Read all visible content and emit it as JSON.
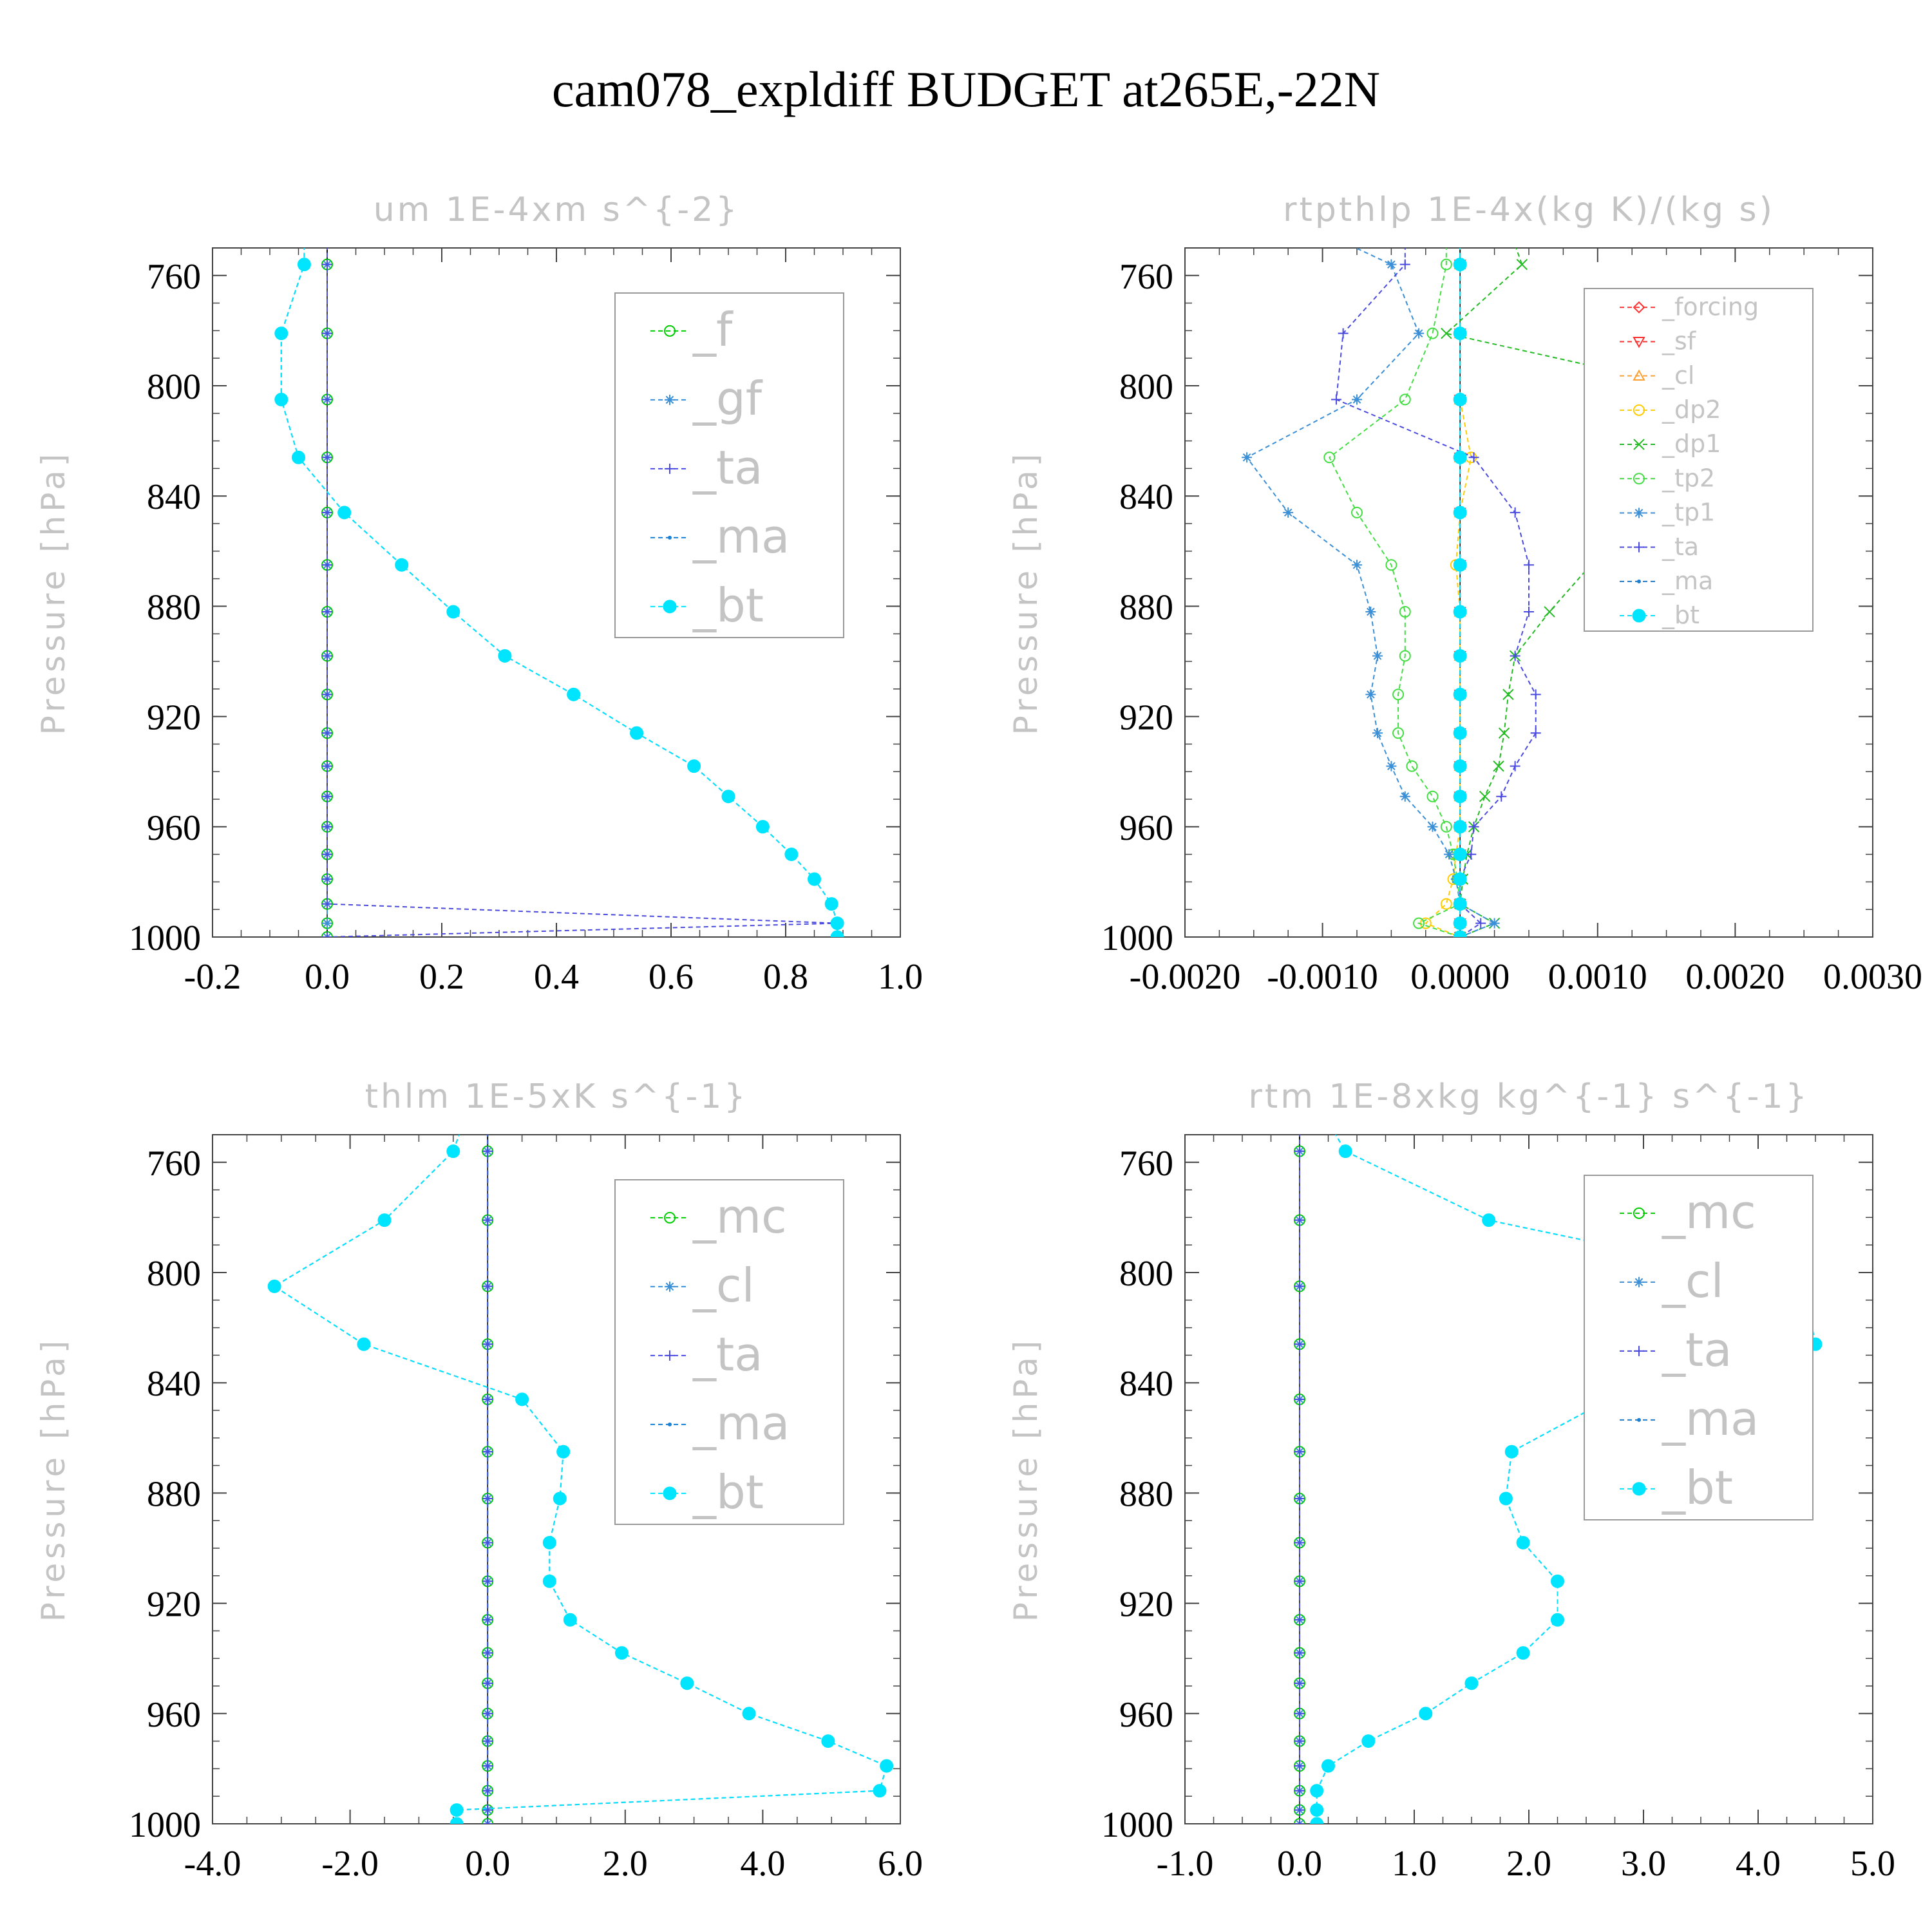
{
  "title": "cam078_expldiff  BUDGET at265E,-22N",
  "chart_data": [
    {
      "type": "line",
      "title": "um   1E-4xm s^{-2}",
      "ylabel": "Pressure [hPa]",
      "xlim": [
        -0.2,
        1.0
      ],
      "ylim": [
        1000,
        750
      ],
      "xticks": [
        "-0.2",
        "0.0",
        "0.2",
        "0.4",
        "0.6",
        "0.8",
        "1.0"
      ],
      "yticks": [
        "760",
        "800",
        "840",
        "880",
        "920",
        "960",
        "1000"
      ],
      "levels": [
        749,
        756,
        781,
        805,
        826,
        846,
        865,
        882,
        898,
        912,
        926,
        938,
        949,
        960,
        970,
        979,
        988,
        995,
        1000
      ],
      "series": [
        {
          "name": "_f",
          "color": "#00cc00",
          "marker": "circle",
          "values": [
            0,
            0,
            0,
            0,
            0,
            0,
            0,
            0,
            0,
            0,
            0,
            0,
            0,
            0,
            0,
            0,
            0,
            0,
            0
          ]
        },
        {
          "name": "_gf",
          "color": "#3a8fd6",
          "marker": "star",
          "values": [
            0,
            0,
            0,
            0,
            0,
            0,
            0,
            0,
            0,
            0,
            0,
            0,
            0,
            0,
            0,
            0,
            0,
            0,
            0
          ]
        },
        {
          "name": "_ta",
          "color": "#4a4ae0",
          "marker": "plus",
          "values": [
            0,
            0,
            0,
            0,
            0,
            0,
            0,
            0,
            0,
            0,
            0,
            0,
            0,
            0,
            0,
            0,
            0,
            0.89,
            0
          ]
        },
        {
          "name": "_ma",
          "color": "#1c7fd0",
          "marker": "dot",
          "values": [
            -0.04,
            -0.04,
            -0.08,
            -0.08,
            -0.05,
            0.03,
            0.13,
            0.22,
            0.31,
            0.43,
            0.54,
            0.64,
            0.7,
            0.76,
            0.81,
            0.85,
            0.88,
            0.89,
            0.89
          ]
        },
        {
          "name": "_bt",
          "color": "#00e5ff",
          "marker": "filled",
          "values": [
            -0.04,
            -0.04,
            -0.08,
            -0.08,
            -0.05,
            0.03,
            0.13,
            0.22,
            0.31,
            0.43,
            0.54,
            0.64,
            0.7,
            0.76,
            0.81,
            0.85,
            0.88,
            0.89,
            0.89
          ]
        }
      ]
    },
    {
      "type": "line",
      "title": "rtpthlp   1E-4x(kg K)/(kg s)",
      "ylabel": "Pressure [hPa]",
      "xlim": [
        -0.002,
        0.003
      ],
      "ylim": [
        1000,
        750
      ],
      "xticks": [
        "-0.0020",
        "-0.0010",
        "0.0000",
        "0.0010",
        "0.0020",
        "0.0030"
      ],
      "yticks": [
        "760",
        "800",
        "840",
        "880",
        "920",
        "960",
        "1000"
      ],
      "levels": [
        749,
        756,
        781,
        805,
        826,
        846,
        865,
        882,
        898,
        912,
        926,
        938,
        949,
        960,
        970,
        979,
        988,
        995,
        1000
      ],
      "series": [
        {
          "name": "_forcing",
          "color": "#ff3030",
          "marker": "diamond",
          "values": [
            0,
            0,
            0,
            0,
            0,
            0,
            0,
            0,
            0,
            0,
            0,
            0,
            0,
            0,
            0,
            0,
            0,
            0,
            0
          ]
        },
        {
          "name": "_sf",
          "color": "#ff3030",
          "marker": "tri-down",
          "values": [
            0,
            0,
            0,
            0,
            0,
            0,
            0,
            0,
            0,
            0,
            0,
            0,
            0,
            0,
            0,
            0,
            0,
            0,
            0
          ]
        },
        {
          "name": "_cl",
          "color": "#ffa030",
          "marker": "triangle",
          "values": [
            0,
            0,
            0,
            0,
            0,
            0,
            0,
            0,
            0,
            0,
            0,
            0,
            0,
            0,
            0,
            0,
            0,
            0,
            0
          ]
        },
        {
          "name": "_dp2",
          "color": "#ffcc00",
          "marker": "circle",
          "values": [
            0,
            0,
            0,
            0,
            8e-05,
            0,
            -3e-05,
            0,
            0,
            0,
            0,
            0,
            0,
            0,
            -3e-05,
            -5e-05,
            -0.0001,
            -0.00025,
            0
          ]
        },
        {
          "name": "_dp1",
          "color": "#22bb22",
          "marker": "x",
          "values": [
            0.0004,
            0.00045,
            -0.0001,
            0.00205,
            0.00222,
            0.0014,
            0.00095,
            0.00065,
            0.0004,
            0.00035,
            0.00032,
            0.00028,
            0.00018,
            0.0001,
            5e-05,
            2e-05,
            0,
            0.00025,
            0
          ]
        },
        {
          "name": "_tp2",
          "color": "#44dd44",
          "marker": "circle",
          "values": [
            -0.0001,
            -0.0001,
            -0.0002,
            -0.0004,
            -0.00095,
            -0.00075,
            -0.0005,
            -0.0004,
            -0.0004,
            -0.00045,
            -0.00045,
            -0.00035,
            -0.0002,
            -0.0001,
            -5e-05,
            -2e-05,
            0,
            -0.0003,
            0
          ]
        },
        {
          "name": "_tp1",
          "color": "#3a8fd6",
          "marker": "star",
          "values": [
            -0.0008,
            -0.0005,
            -0.0003,
            -0.00075,
            -0.00155,
            -0.00125,
            -0.00075,
            -0.00065,
            -0.0006,
            -0.00065,
            -0.0006,
            -0.0005,
            -0.0004,
            -0.0002,
            -8e-05,
            -3e-05,
            0,
            0.00025,
            0
          ]
        },
        {
          "name": "_ta",
          "color": "#4a4ae0",
          "marker": "plus",
          "values": [
            -0.0004,
            -0.0004,
            -0.00085,
            -0.0009,
            0.0001,
            0.0004,
            0.0005,
            0.0005,
            0.0004,
            0.00055,
            0.00055,
            0.0004,
            0.0003,
            0.0001,
            8e-05,
            0,
            0,
            0.00015,
            0
          ]
        },
        {
          "name": "_ma",
          "color": "#1c7fd0",
          "marker": "dot",
          "values": [
            0,
            0,
            0,
            0,
            0,
            0,
            0,
            0,
            0,
            0,
            0,
            0,
            0,
            0,
            0,
            0,
            0,
            0,
            0
          ]
        },
        {
          "name": "_bt",
          "color": "#00e5ff",
          "marker": "filled",
          "values": [
            0,
            0,
            0,
            0,
            0,
            0,
            0,
            0,
            0,
            0,
            0,
            0,
            0,
            0,
            0,
            0,
            0,
            0,
            0
          ]
        }
      ]
    },
    {
      "type": "line",
      "title": "thlm   1E-5xK s^{-1}",
      "ylabel": "Pressure [hPa]",
      "xlim": [
        -4.0,
        6.0
      ],
      "ylim": [
        1000,
        750
      ],
      "xticks": [
        "-4.0",
        "-2.0",
        "0.0",
        "2.0",
        "4.0",
        "6.0"
      ],
      "yticks": [
        "760",
        "800",
        "840",
        "880",
        "920",
        "960",
        "1000"
      ],
      "levels": [
        749,
        756,
        781,
        805,
        826,
        846,
        865,
        882,
        898,
        912,
        926,
        938,
        949,
        960,
        970,
        979,
        988,
        995,
        1000
      ],
      "series": [
        {
          "name": "_mc",
          "color": "#00cc00",
          "marker": "circle",
          "values": [
            0,
            0,
            0,
            0,
            0,
            0,
            0,
            0,
            0,
            0,
            0,
            0,
            0,
            0,
            0,
            0,
            0,
            0,
            0
          ]
        },
        {
          "name": "_cl",
          "color": "#3a8fd6",
          "marker": "star",
          "values": [
            0,
            0,
            0,
            0,
            0,
            0,
            0,
            0,
            0,
            0,
            0,
            0,
            0,
            0,
            0,
            0,
            0,
            0,
            0
          ]
        },
        {
          "name": "_ta",
          "color": "#4a4ae0",
          "marker": "plus",
          "values": [
            0,
            0,
            0,
            0,
            0,
            0,
            0,
            0,
            0,
            0,
            0,
            0,
            0,
            0,
            0,
            0,
            0,
            0,
            0
          ]
        },
        {
          "name": "_ma",
          "color": "#1c7fd0",
          "marker": "dot",
          "values": [
            -0.4,
            -0.5,
            -1.5,
            -3.1,
            -1.8,
            0.5,
            1.1,
            1.05,
            0.9,
            0.9,
            1.2,
            1.95,
            2.9,
            3.8,
            4.95,
            5.8,
            5.7,
            -0.45,
            -0.45
          ]
        },
        {
          "name": "_bt",
          "color": "#00e5ff",
          "marker": "filled",
          "values": [
            -0.4,
            -0.5,
            -1.5,
            -3.1,
            -1.8,
            0.5,
            1.1,
            1.05,
            0.9,
            0.9,
            1.2,
            1.95,
            2.9,
            3.8,
            4.95,
            5.8,
            5.7,
            -0.45,
            -0.45
          ]
        }
      ]
    },
    {
      "type": "line",
      "title": "rtm   1E-8xkg kg^{-1} s^{-1}",
      "ylabel": "Pressure [hPa]",
      "xlim": [
        -1.0,
        5.0
      ],
      "ylim": [
        1000,
        750
      ],
      "xticks": [
        "-1.0",
        "0.0",
        "1.0",
        "2.0",
        "3.0",
        "4.0",
        "5.0"
      ],
      "yticks": [
        "760",
        "800",
        "840",
        "880",
        "920",
        "960",
        "1000"
      ],
      "levels": [
        749,
        756,
        781,
        805,
        826,
        846,
        865,
        882,
        898,
        912,
        926,
        938,
        949,
        960,
        970,
        979,
        988,
        995,
        1000
      ],
      "series": [
        {
          "name": "_mc",
          "color": "#00cc00",
          "marker": "circle",
          "values": [
            0,
            0,
            0,
            0,
            0,
            0,
            0,
            0,
            0,
            0,
            0,
            0,
            0,
            0,
            0,
            0,
            0,
            0,
            0
          ]
        },
        {
          "name": "_cl",
          "color": "#3a8fd6",
          "marker": "star",
          "values": [
            0,
            0,
            0,
            0,
            0,
            0,
            0,
            0,
            0,
            0,
            0,
            0,
            0,
            0,
            0,
            0,
            0,
            0,
            0
          ]
        },
        {
          "name": "_ta",
          "color": "#4a4ae0",
          "marker": "plus",
          "values": [
            0,
            0,
            0,
            0,
            0,
            0,
            0,
            0,
            0,
            0,
            0,
            0,
            0,
            0,
            0,
            0,
            0,
            0,
            0
          ]
        },
        {
          "name": "_ma",
          "color": "#1c7fd0",
          "marker": "dot",
          "values": [
            0.3,
            0.4,
            1.65,
            4.4,
            4.5,
            2.7,
            1.85,
            1.8,
            1.95,
            2.25,
            2.25,
            1.95,
            1.5,
            1.1,
            0.6,
            0.25,
            0.15,
            0.15,
            0.15
          ]
        },
        {
          "name": "_bt",
          "color": "#00e5ff",
          "marker": "filled",
          "values": [
            0.3,
            0.4,
            1.65,
            4.4,
            4.5,
            2.7,
            1.85,
            1.8,
            1.95,
            2.25,
            2.25,
            1.95,
            1.5,
            1.1,
            0.6,
            0.25,
            0.15,
            0.15,
            0.15
          ]
        }
      ]
    }
  ]
}
